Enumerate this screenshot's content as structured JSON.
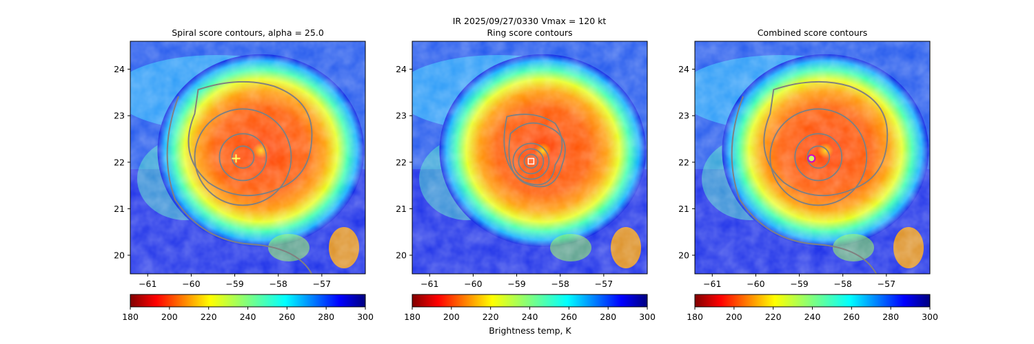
{
  "figure": {
    "suptitle_line1": "IR  2025/09/27/0330    Vmax = 120 kt",
    "colorbar_label": "Brightness temp, K"
  },
  "chart_data": [
    {
      "type": "heatmap",
      "title": "Spiral score contours, alpha = 25.0",
      "xlabel": "",
      "ylabel": "",
      "x_ticks": [
        -61,
        -60,
        -59,
        -58,
        -57
      ],
      "y_ticks": [
        20,
        21,
        22,
        23,
        24
      ],
      "xlim": [
        -61.4,
        -56.0
      ],
      "ylim": [
        19.6,
        24.6
      ],
      "field": "IR brightness temperature",
      "colormap": "jet_r",
      "colorbar_range": [
        180,
        300
      ],
      "colorbar_ticks": [
        180,
        200,
        220,
        240,
        260,
        280,
        300
      ],
      "contour_color": "#808080",
      "center_marker": {
        "x": -58.97,
        "y": 22.08,
        "symbol": "plus",
        "color": "#ffff66"
      }
    },
    {
      "type": "heatmap",
      "title": "Ring score contours",
      "xlabel": "",
      "ylabel": "",
      "x_ticks": [
        -61,
        -60,
        -59,
        -58,
        -57
      ],
      "y_ticks": [
        20,
        21,
        22,
        23,
        24
      ],
      "xlim": [
        -61.4,
        -56.0
      ],
      "ylim": [
        19.6,
        24.6
      ],
      "field": "IR brightness temperature",
      "colormap": "jet_r",
      "colorbar_range": [
        180,
        300
      ],
      "colorbar_ticks": [
        180,
        200,
        220,
        240,
        260,
        280,
        300
      ],
      "contour_color": "#808080",
      "center_marker": {
        "x": -58.67,
        "y": 22.02,
        "symbol": "square",
        "color": "#ffffff"
      }
    },
    {
      "type": "heatmap",
      "title": "Combined score contours",
      "xlabel": "",
      "ylabel": "",
      "x_ticks": [
        -61,
        -60,
        -59,
        -58,
        -57
      ],
      "y_ticks": [
        20,
        21,
        22,
        23,
        24
      ],
      "xlim": [
        -61.4,
        -56.0
      ],
      "ylim": [
        19.6,
        24.6
      ],
      "field": "IR brightness temperature",
      "colormap": "jet_r",
      "colorbar_range": [
        180,
        300
      ],
      "colorbar_ticks": [
        180,
        200,
        220,
        240,
        260,
        280,
        300
      ],
      "contour_color": "#808080",
      "center_marker": {
        "x": -58.72,
        "y": 22.08,
        "symbol": "circle",
        "color": "#cc00cc"
      }
    }
  ]
}
